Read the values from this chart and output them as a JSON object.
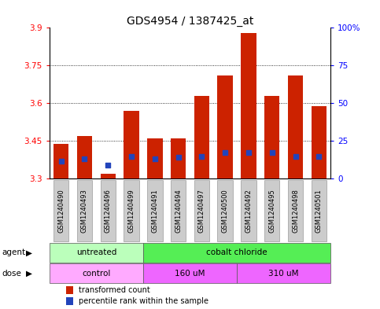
{
  "title": "GDS4954 / 1387425_at",
  "samples": [
    "GSM1240490",
    "GSM1240493",
    "GSM1240496",
    "GSM1240499",
    "GSM1240491",
    "GSM1240494",
    "GSM1240497",
    "GSM1240500",
    "GSM1240492",
    "GSM1240495",
    "GSM1240498",
    "GSM1240501"
  ],
  "bar_values": [
    3.44,
    3.47,
    3.32,
    3.57,
    3.46,
    3.46,
    3.63,
    3.71,
    3.88,
    3.63,
    3.71,
    3.59
  ],
  "bar_bottom": 3.3,
  "blue_values": [
    3.37,
    3.38,
    3.355,
    3.39,
    3.38,
    3.385,
    3.39,
    3.405,
    3.405,
    3.405,
    3.39,
    3.39
  ],
  "ylim": [
    3.3,
    3.9
  ],
  "yticks_left": [
    3.3,
    3.45,
    3.6,
    3.75,
    3.9
  ],
  "yticks_right": [
    0,
    25,
    50,
    75,
    100
  ],
  "right_tick_labels": [
    "0",
    "25",
    "50",
    "75",
    "100%"
  ],
  "bar_color": "#cc2200",
  "blue_color": "#2244bb",
  "bar_width": 0.65,
  "bg_color": "#ffffff",
  "agent_groups": [
    {
      "label": "untreated",
      "start": 0,
      "end": 4
    },
    {
      "label": "cobalt chloride",
      "start": 4,
      "end": 12
    }
  ],
  "agent_colors": [
    "#bbffbb",
    "#55ee55"
  ],
  "dose_groups": [
    {
      "label": "control",
      "start": 0,
      "end": 4
    },
    {
      "label": "160 uM",
      "start": 4,
      "end": 8
    },
    {
      "label": "310 uM",
      "start": 8,
      "end": 12
    }
  ],
  "dose_colors": [
    "#ffaaff",
    "#ee66ff",
    "#ee66ff"
  ],
  "sample_bg_color": "#cccccc",
  "agent_label": "agent",
  "dose_label": "dose",
  "legend_red": "transformed count",
  "legend_blue": "percentile rank within the sample",
  "title_fontsize": 10,
  "tick_fontsize": 7.5,
  "sample_fontsize": 6,
  "label_fontsize": 7.5,
  "group_fontsize": 7.5
}
